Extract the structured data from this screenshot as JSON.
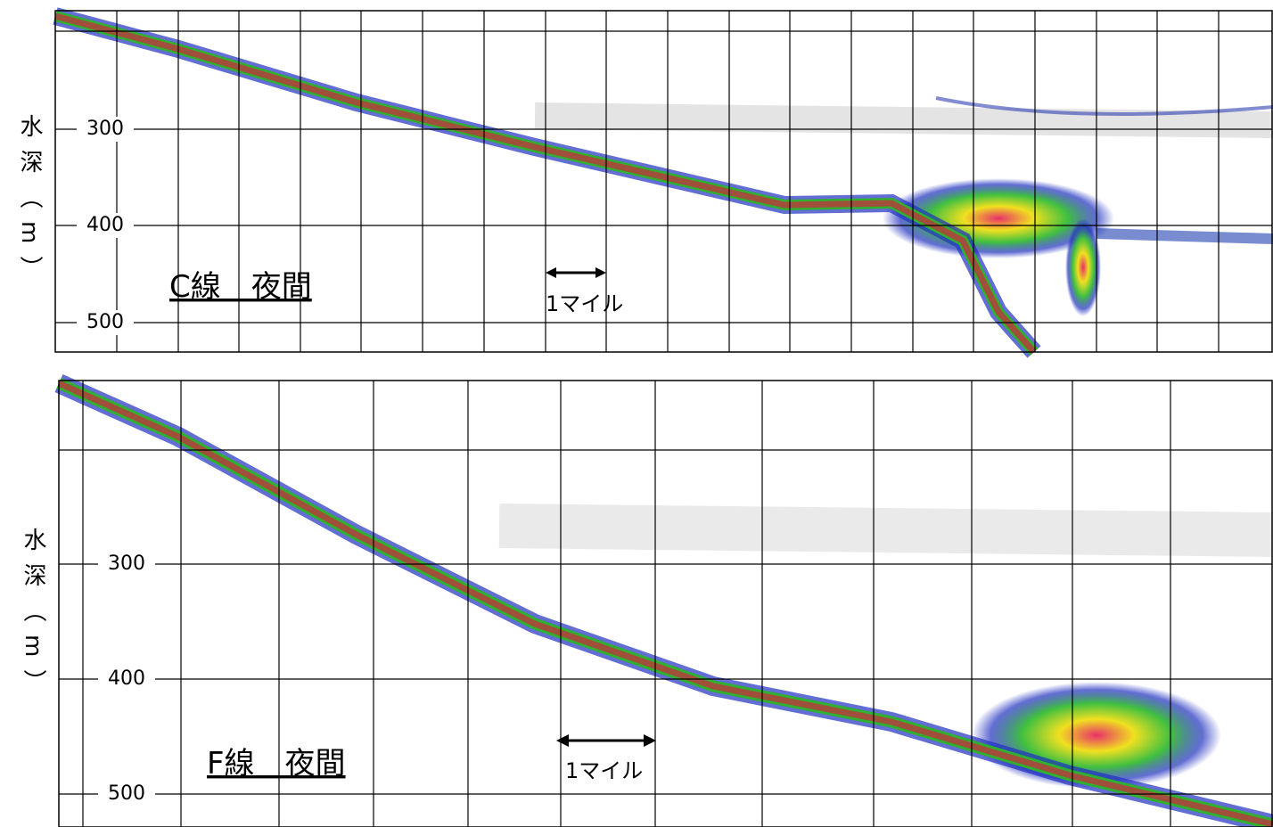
{
  "panels": [
    {
      "label": "C線　夜間",
      "scale": "1マイル",
      "y_axis_label": "水深（m）",
      "yticks": [
        "300",
        "400",
        "500"
      ]
    },
    {
      "label": "F線　夜間",
      "scale": "1マイル",
      "y_axis_label": "水深（m）",
      "yticks": [
        "300",
        "400",
        "500"
      ]
    }
  ]
}
